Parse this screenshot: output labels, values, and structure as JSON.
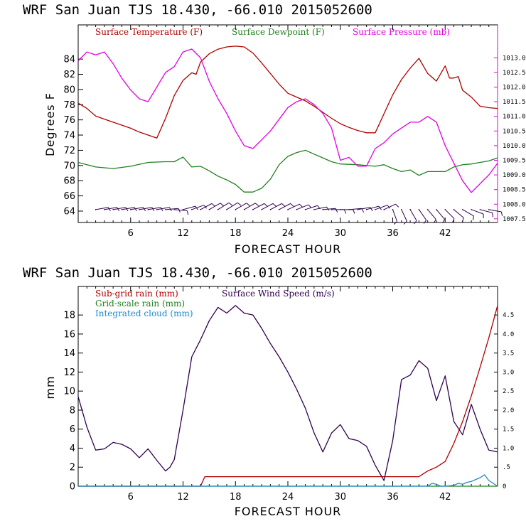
{
  "chart_data": [
    {
      "type": "line",
      "title": "WRF   San Juan TJS  18.430, -66.010  2015052600",
      "xlabel": "FORECAST HOUR",
      "ylabel": "Degrees F",
      "xlim": [
        0,
        48
      ],
      "ylim": [
        62.5,
        88.5
      ],
      "y2lim": [
        1007.375,
        1014.125
      ],
      "xticks": [
        6,
        12,
        18,
        24,
        30,
        36,
        42
      ],
      "yticks": [
        64,
        66,
        68,
        70,
        72,
        74,
        76,
        78,
        80,
        82,
        84
      ],
      "y2ticks": [
        "1007.5",
        "1008.0",
        "1008.5",
        "1009.0",
        "1009.5",
        "1010.0",
        "1010.5",
        "1011.0",
        "1011.5",
        "1012.0",
        "1012.5",
        "1013.0"
      ],
      "colors": {
        "temp": "#b00000",
        "dew": "#208020",
        "pres": "#e000e0",
        "barb": "#300050"
      },
      "series": [
        {
          "name": "Surface Temperature (F)",
          "axis": "left",
          "color": "#b00000",
          "x": [
            0,
            1,
            2,
            3,
            4,
            5,
            6,
            7,
            8,
            9,
            10,
            11,
            12,
            13,
            13.5,
            14,
            15,
            16,
            17,
            18,
            19,
            20,
            21,
            22,
            23,
            24,
            25,
            26,
            27,
            28,
            29,
            30,
            31,
            32,
            33,
            34,
            35,
            36,
            37,
            38,
            39,
            40,
            41,
            42,
            42.5,
            43,
            43.5,
            44,
            45,
            46,
            47,
            48
          ],
          "y": [
            78.2,
            77.5,
            76.5,
            76.1,
            75.7,
            75.3,
            74.9,
            74.4,
            74.0,
            73.6,
            76.2,
            79.2,
            81.2,
            82.2,
            82.0,
            83.6,
            84.7,
            85.3,
            85.6,
            85.7,
            85.6,
            84.8,
            83.5,
            82.1,
            80.7,
            79.5,
            79.0,
            78.5,
            77.8,
            77.0,
            76.2,
            75.5,
            75.0,
            74.6,
            74.3,
            74.3,
            76.8,
            79.3,
            81.3,
            82.8,
            84.1,
            82.1,
            81.1,
            83.1,
            81.5,
            81.5,
            81.7,
            79.9,
            79.0,
            77.8,
            77.6,
            77.5
          ]
        },
        {
          "name": "Surface Dewpoint (F)",
          "axis": "left",
          "color": "#208020",
          "x": [
            0,
            2,
            4,
            6,
            8,
            10,
            11,
            12,
            13,
            14,
            15,
            16,
            17,
            18,
            19,
            20,
            21,
            22,
            23,
            24,
            25,
            26,
            27,
            28,
            29,
            30,
            32,
            34,
            35,
            36,
            37,
            38,
            39,
            40,
            41,
            42,
            43,
            44,
            45,
            46,
            47,
            48
          ],
          "y": [
            70.4,
            69.8,
            69.6,
            69.9,
            70.4,
            70.5,
            70.5,
            71.1,
            69.8,
            69.9,
            69.3,
            68.6,
            68.1,
            67.5,
            66.5,
            66.5,
            67.0,
            68.2,
            70.1,
            71.2,
            71.7,
            72.0,
            71.5,
            71.0,
            70.5,
            70.2,
            70.1,
            69.9,
            70.1,
            69.6,
            69.2,
            69.4,
            68.7,
            69.2,
            69.2,
            69.2,
            69.8,
            70.1,
            70.2,
            70.4,
            70.6,
            71.0
          ]
        },
        {
          "name": "Surface Pressure (mb)",
          "axis": "right",
          "color": "#e000e0",
          "x": [
            0,
            1,
            2,
            3,
            4,
            5,
            6,
            7,
            8,
            9,
            10,
            11,
            12,
            13,
            14,
            15,
            16,
            17,
            18,
            19,
            20,
            21,
            22,
            23,
            24,
            25,
            26,
            27,
            28,
            29,
            30,
            31,
            32,
            33,
            34,
            35,
            36,
            37,
            38,
            39,
            40,
            41,
            42,
            43,
            44,
            45,
            46,
            47,
            48
          ],
          "y": [
            1012.9,
            1013.2,
            1013.1,
            1013.2,
            1012.8,
            1012.3,
            1011.9,
            1011.6,
            1011.5,
            1012.0,
            1012.5,
            1012.7,
            1013.2,
            1013.3,
            1013.0,
            1012.2,
            1011.6,
            1011.1,
            1010.5,
            1010.0,
            1009.9,
            1010.2,
            1010.5,
            1010.9,
            1011.3,
            1011.5,
            1011.6,
            1011.4,
            1011.1,
            1010.6,
            1009.5,
            1009.6,
            1009.3,
            1009.3,
            1009.9,
            1010.1,
            1010.4,
            1010.6,
            1010.8,
            1010.8,
            1011.0,
            1010.8,
            1010.0,
            1009.4,
            1008.8,
            1008.4,
            1008.7,
            1009.0,
            1009.4
          ]
        }
      ],
      "wind_barbs": {
        "name": "wind barbs",
        "hours": [
          2,
          3,
          4,
          5,
          6,
          7,
          8,
          9,
          10,
          11,
          12,
          13,
          14,
          15,
          16,
          17,
          18,
          19,
          20,
          21,
          22,
          23,
          24,
          25,
          26,
          27,
          28,
          29,
          30,
          31,
          32,
          33,
          34,
          35,
          36,
          37,
          38,
          39,
          40,
          41,
          42,
          43,
          44,
          45,
          46,
          47
        ],
        "angles": [
          80,
          80,
          80,
          80,
          80,
          80,
          80,
          80,
          85,
          95,
          75,
          70,
          62,
          60,
          58,
          58,
          60,
          60,
          62,
          62,
          62,
          62,
          65,
          68,
          72,
          78,
          85,
          90,
          90,
          85,
          80,
          75,
          70,
          65,
          160,
          155,
          150,
          145,
          140,
          140,
          135,
          130,
          120,
          110,
          105,
          100
        ]
      },
      "legend": [
        "Surface Temperature (F)",
        "Surface Dewpoint (F)",
        "Surface Pressure (mb)"
      ],
      "legend_position": "top"
    },
    {
      "type": "line",
      "title": "WRF   San Juan TJS  18.430, -66.010  2015052600",
      "xlabel": "FORECAST HOUR",
      "ylabel": "mm",
      "xlim": [
        0,
        48
      ],
      "ylim": [
        0,
        21
      ],
      "y2lim": [
        0,
        5.25
      ],
      "xticks": [
        6,
        12,
        18,
        24,
        30,
        36,
        42
      ],
      "yticks": [
        0,
        2,
        4,
        6,
        8,
        10,
        12,
        14,
        16,
        18
      ],
      "y2ticks": [
        "0",
        ".5",
        "1.0",
        "1.5",
        "2.0",
        "2.5",
        "3.0",
        "3.5",
        "4.0",
        "4.5"
      ],
      "colors": {
        "subgrid": "#b00000",
        "grid": "#208020",
        "cloud": "#1a8ad0",
        "wind": "#300050"
      },
      "series": [
        {
          "name": "Sub-grid rain (mm)",
          "axis": "left",
          "color": "#b00000",
          "x": [
            0,
            14,
            14.5,
            39,
            40,
            41,
            42,
            43,
            44,
            45,
            46,
            47,
            48
          ],
          "y": [
            0,
            0,
            1.0,
            1.0,
            1.6,
            2.0,
            2.6,
            4.5,
            6.8,
            9.5,
            12.5,
            15.6,
            19.0
          ]
        },
        {
          "name": "Grid-scale rain (mm)",
          "axis": "left",
          "color": "#208020",
          "x": [
            0,
            48
          ],
          "y": [
            0,
            0
          ]
        },
        {
          "name": "Integrated cloud (mm)",
          "axis": "left",
          "color": "#1a8ad0",
          "x": [
            0,
            40,
            40.5,
            41,
            41.5,
            42,
            43,
            43.5,
            44,
            44.5,
            45,
            45.5,
            46,
            46.5,
            47,
            48
          ],
          "y": [
            0,
            0,
            0.3,
            0.2,
            0,
            0,
            0.1,
            0.3,
            0.2,
            0.4,
            0.5,
            0.7,
            0.9,
            1.2,
            0.6,
            0
          ]
        },
        {
          "name": "Surface Wind Speed (m/s)",
          "axis": "right",
          "color": "#300050",
          "x": [
            0,
            1,
            2,
            3,
            4,
            5,
            6,
            7,
            8,
            9,
            10,
            10.5,
            11,
            12,
            13,
            14,
            15,
            16,
            17,
            18,
            19,
            20,
            21,
            22,
            23,
            24,
            25,
            26,
            27,
            28,
            29,
            30,
            31,
            32,
            33,
            34,
            35,
            36,
            37,
            38,
            39,
            40,
            41,
            42,
            43,
            44,
            45,
            46,
            47,
            48
          ],
          "y": [
            2.35,
            1.55,
            0.95,
            0.98,
            1.15,
            1.1,
            0.98,
            0.75,
            0.98,
            0.68,
            0.4,
            0.5,
            0.7,
            2.0,
            3.4,
            3.85,
            4.35,
            4.7,
            4.55,
            4.75,
            4.55,
            4.5,
            4.15,
            3.75,
            3.4,
            3.0,
            2.55,
            2.05,
            1.4,
            0.9,
            1.4,
            1.62,
            1.25,
            1.2,
            1.05,
            0.55,
            0.15,
            1.2,
            2.8,
            2.92,
            3.3,
            3.1,
            2.25,
            2.9,
            1.7,
            1.35,
            2.15,
            1.5,
            0.95,
            0.9
          ]
        }
      ],
      "legend": [
        "Sub-grid rain (mm)",
        "Surface Wind Speed (m/s)",
        "Grid-scale rain (mm)",
        "Integrated cloud (mm)"
      ],
      "legend_position": "top-left"
    }
  ]
}
